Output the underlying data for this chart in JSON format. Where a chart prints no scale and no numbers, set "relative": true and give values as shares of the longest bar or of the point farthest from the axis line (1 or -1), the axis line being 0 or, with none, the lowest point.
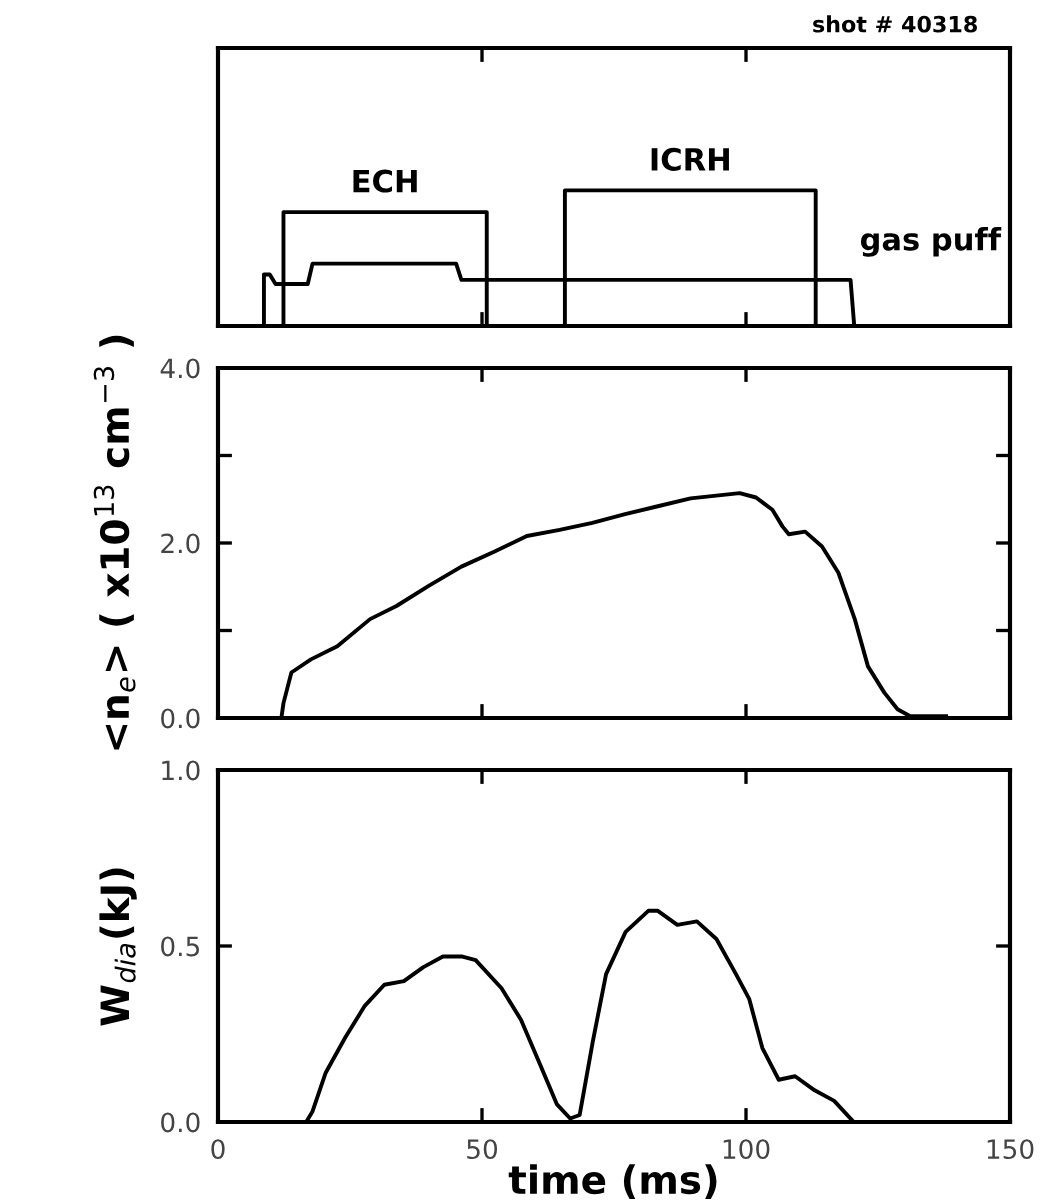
{
  "chart_data": [
    {
      "type": "line",
      "title": "shot # 40318",
      "relative": true,
      "xlim": [
        0,
        150
      ],
      "xticks": [
        0,
        50,
        100,
        150
      ],
      "tick_labels": false,
      "series": [
        {
          "name": "ECH",
          "color": "#000000",
          "x": [
            12.4,
            12.4,
            50.9,
            50.9
          ],
          "values": [
            0,
            0.84,
            0.84,
            0
          ]
        },
        {
          "name": "ICRH",
          "color": "#000000",
          "x": [
            65.7,
            65.7,
            113.2,
            113.2
          ],
          "values": [
            0,
            1,
            1,
            0
          ]
        },
        {
          "name": "gas puff",
          "color": "#000000",
          "x": [
            8.7,
            8.7,
            9.8,
            10.9,
            17.0,
            17.9,
            45.1,
            46.1,
            119.8,
            120.5
          ],
          "values": [
            0,
            0.38,
            0.38,
            0.31,
            0.31,
            0.46,
            0.46,
            0.34,
            0.34,
            0
          ]
        }
      ]
    },
    {
      "type": "line",
      "ylabel": "<n$_{e}$> ( x10$^{13}$ cm$^{−3}$ )",
      "xlim": [
        0,
        150
      ],
      "xticks": [
        0,
        50,
        100,
        150
      ],
      "ylim": [
        0,
        4
      ],
      "yticks": [
        {
          "value": 0,
          "label": "0.0"
        },
        {
          "value": 1,
          "label": null
        },
        {
          "value": 2,
          "label": "2.0"
        },
        {
          "value": 3,
          "label": null
        },
        {
          "value": 4,
          "label": "4.0"
        }
      ],
      "tick_labels": "y",
      "series": [
        {
          "color": "#000000",
          "x": [
            12.0,
            12.4,
            13.9,
            17.6,
            22.6,
            28.8,
            33.8,
            39.9,
            46.1,
            52.3,
            58.5,
            64.7,
            70.9,
            77.1,
            83.3,
            89.5,
            95.7,
            98.8,
            101.9,
            105.0,
            106.9,
            108.1,
            111.2,
            114.4,
            117.5,
            120.6,
            123.1,
            126.2,
            128.7,
            131.1,
            137.9
          ],
          "values": [
            0,
            0.17,
            0.52,
            0.67,
            0.82,
            1.13,
            1.28,
            1.51,
            1.73,
            1.9,
            2.08,
            2.15,
            2.23,
            2.33,
            2.42,
            2.51,
            2.55,
            2.57,
            2.52,
            2.38,
            2.19,
            2.1,
            2.13,
            1.96,
            1.66,
            1.13,
            0.59,
            0.29,
            0.1,
            0.02,
            0.02
          ]
        }
      ]
    },
    {
      "type": "line",
      "ylabel": "W$_{dia}$(kJ)",
      "xlabel": "time (ms)",
      "xlim": [
        0,
        150
      ],
      "xticks": [
        0,
        50,
        100,
        150
      ],
      "ylim": [
        0,
        1
      ],
      "yticks": [
        {
          "value": 0,
          "label": "0.0"
        },
        {
          "value": 0.5,
          "label": "0.5"
        },
        {
          "value": 1,
          "label": "1.0"
        }
      ],
      "series": [
        {
          "color": "#000000",
          "x": [
            16.7,
            17.9,
            20.4,
            24.1,
            27.8,
            31.5,
            35.2,
            38.9,
            42.6,
            46.3,
            48.8,
            53.7,
            57.4,
            61.1,
            64.2,
            66.7,
            68.5,
            71.0,
            73.5,
            77.2,
            81.5,
            83.3,
            87.0,
            90.7,
            94.4,
            98.1,
            100.6,
            103.1,
            106.2,
            109.3,
            113.0,
            116.7,
            120.4
          ],
          "values": [
            0,
            0.03,
            0.14,
            0.24,
            0.33,
            0.39,
            0.4,
            0.44,
            0.47,
            0.47,
            0.46,
            0.38,
            0.29,
            0.16,
            0.05,
            0.01,
            0.02,
            0.23,
            0.42,
            0.54,
            0.6,
            0.6,
            0.56,
            0.57,
            0.52,
            0.42,
            0.35,
            0.21,
            0.12,
            0.13,
            0.09,
            0.06,
            0
          ]
        }
      ]
    }
  ]
}
